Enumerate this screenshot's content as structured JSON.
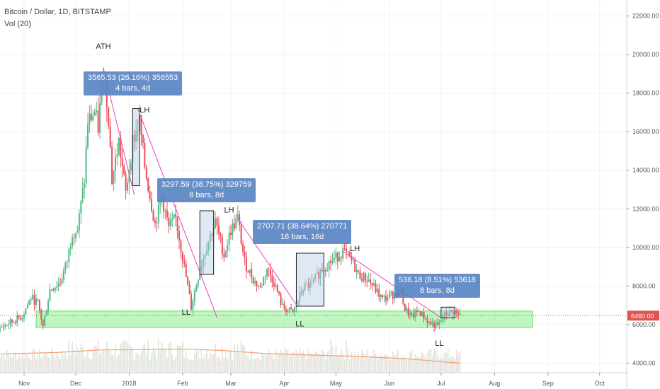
{
  "legend": {
    "symbol_line": "Bitcoin / Dollar, 1D, BITSTAMP",
    "volume_line": "Vol (20)"
  },
  "colors": {
    "up": "#53b987",
    "down": "#eb4d5c",
    "trend_line": "#e840c8",
    "support_zone": "#8cf08c",
    "measure_box": "#5b86c4",
    "price_tag": "#e0534e",
    "volume_ma": "#f0a070"
  },
  "chart_data": {
    "type": "candlestick",
    "y_axis": {
      "range": [
        3500,
        22500
      ],
      "ticks": [
        4000,
        6000,
        8000,
        10000,
        12000,
        14000,
        16000,
        18000,
        20000,
        22000
      ],
      "tick_labels": [
        "4000.00",
        "6000.00",
        "8000.00",
        "10000.00",
        "12000.00",
        "14000.00",
        "16000.00",
        "18000.00",
        "20000.00",
        "22000.00"
      ]
    },
    "x_axis": {
      "labels": [
        "Nov",
        "Dec",
        "2018",
        "Feb",
        "Mar",
        "Apr",
        "May",
        "Jun",
        "Jul",
        "Aug",
        "Sep",
        "Oct"
      ],
      "dates": [
        "2017-11-01",
        "2017-12-01",
        "2018-01-01",
        "2018-02-01",
        "2018-03-01",
        "2018-04-01",
        "2018-05-01",
        "2018-06-01",
        "2018-07-01",
        "2018-08-01",
        "2018-09-01",
        "2018-10-01"
      ]
    },
    "price_path": [
      [
        "2017-10-15",
        5700
      ],
      [
        "2017-10-22",
        6000
      ],
      [
        "2017-10-31",
        6450
      ],
      [
        "2017-11-05",
        7400
      ],
      [
        "2017-11-09",
        7100
      ],
      [
        "2017-11-12",
        5900
      ],
      [
        "2017-11-16",
        7800
      ],
      [
        "2017-11-22",
        8200
      ],
      [
        "2017-11-26",
        9300
      ],
      [
        "2017-11-29",
        10800
      ],
      [
        "2017-12-02",
        10900
      ],
      [
        "2017-12-06",
        13500
      ],
      [
        "2017-12-08",
        16500
      ],
      [
        "2017-12-12",
        17000
      ],
      [
        "2017-12-14",
        16200
      ],
      [
        "2017-12-17",
        19300
      ],
      [
        "2017-12-20",
        16800
      ],
      [
        "2017-12-22",
        13500
      ],
      [
        "2017-12-26",
        15500
      ],
      [
        "2017-12-30",
        12800
      ],
      [
        "2018-01-03",
        15500
      ],
      [
        "2018-01-07",
        16500
      ],
      [
        "2018-01-10",
        14200
      ],
      [
        "2018-01-16",
        11200
      ],
      [
        "2018-01-20",
        12600
      ],
      [
        "2018-01-24",
        11000
      ],
      [
        "2018-01-28",
        11500
      ],
      [
        "2018-02-01",
        9500
      ],
      [
        "2018-02-06",
        6900
      ],
      [
        "2018-02-10",
        8500
      ],
      [
        "2018-02-15",
        10100
      ],
      [
        "2018-02-20",
        11300
      ],
      [
        "2018-02-25",
        9600
      ],
      [
        "2018-03-01",
        10900
      ],
      [
        "2018-03-05",
        11500
      ],
      [
        "2018-03-09",
        9200
      ],
      [
        "2018-03-15",
        8200
      ],
      [
        "2018-03-18",
        7900
      ],
      [
        "2018-03-22",
        8900
      ],
      [
        "2018-03-26",
        8200
      ],
      [
        "2018-03-31",
        6900
      ],
      [
        "2018-04-06",
        6600
      ],
      [
        "2018-04-12",
        7900
      ],
      [
        "2018-04-17",
        8100
      ],
      [
        "2018-04-23",
        8900
      ],
      [
        "2018-04-30",
        9400
      ],
      [
        "2018-05-05",
        9800
      ],
      [
        "2018-05-10",
        9300
      ],
      [
        "2018-05-14",
        8600
      ],
      [
        "2018-05-20",
        8300
      ],
      [
        "2018-05-28",
        7300
      ],
      [
        "2018-06-04",
        7600
      ],
      [
        "2018-06-08",
        7650
      ],
      [
        "2018-06-10",
        6800
      ],
      [
        "2018-06-14",
        6400
      ],
      [
        "2018-06-18",
        6700
      ],
      [
        "2018-06-24",
        6100
      ],
      [
        "2018-06-29",
        5900
      ],
      [
        "2018-07-03",
        6500
      ],
      [
        "2018-07-08",
        6700
      ],
      [
        "2018-07-12",
        6450
      ]
    ],
    "volume_ma_path": [
      [
        "2017-10-15",
        4470
      ],
      [
        "2017-11-20",
        4550
      ],
      [
        "2017-12-15",
        4680
      ],
      [
        "2018-01-10",
        4700
      ],
      [
        "2018-02-05",
        4720
      ],
      [
        "2018-02-25",
        4650
      ],
      [
        "2018-03-20",
        4500
      ],
      [
        "2018-04-15",
        4420
      ],
      [
        "2018-05-10",
        4360
      ],
      [
        "2018-06-10",
        4230
      ],
      [
        "2018-07-12",
        4000
      ]
    ],
    "support_zone": {
      "from": "2017-11-08",
      "to": "2018-08-23",
      "low": 5850,
      "high": 6700
    },
    "trend_lines": [
      {
        "from": [
          "2017-12-17",
          19300
        ],
        "to": [
          "2018-01-04",
          12700
        ]
      },
      {
        "from": [
          "2018-01-06",
          17200
        ],
        "to": [
          "2018-02-21",
          6350
        ]
      },
      {
        "from": [
          "2018-03-05",
          11500
        ],
        "to": [
          "2018-04-09",
          6900
        ]
      },
      {
        "from": [
          "2018-05-05",
          9800
        ],
        "to": [
          "2018-07-01",
          6350
        ]
      }
    ],
    "measure_boxes": [
      {
        "from": "2018-01-03",
        "to": "2018-01-07",
        "low": 13200,
        "high": 17200
      },
      {
        "from": "2018-02-11",
        "to": "2018-02-19",
        "low": 8600,
        "high": 11900
      },
      {
        "from": "2018-04-08",
        "to": "2018-04-24",
        "low": 6950,
        "high": 9700
      },
      {
        "from": "2018-07-01",
        "to": "2018-07-09",
        "low": 6350,
        "high": 6900
      }
    ],
    "annotations": [
      {
        "text": "ATH",
        "date": "2017-12-17",
        "price": 20300
      },
      {
        "text": "LH",
        "date": "2018-01-10",
        "price": 17000
      },
      {
        "text": "LH",
        "date": "2018-02-28",
        "price": 11800
      },
      {
        "text": "LH",
        "date": "2018-05-12",
        "price": 9800
      },
      {
        "text": "LL",
        "date": "2018-02-03",
        "price": 6500
      },
      {
        "text": "LL",
        "date": "2018-04-10",
        "price": 5900
      },
      {
        "text": "LL",
        "date": "2018-06-30",
        "price": 4900
      }
    ],
    "measure_labels": [
      {
        "line1": "3565.53 (26.16%) 356553",
        "line2": "4 bars, 4d"
      },
      {
        "line1": "3297.59 (38.75%) 329759",
        "line2": "8 bars, 8d"
      },
      {
        "line1": "2707.71 (38.64%) 270771",
        "line2": "16 bars, 16d"
      },
      {
        "line1": "536.18 (8.51%) 53618",
        "line2": "8 bars, 8d"
      }
    ],
    "last_price": {
      "value": 6460,
      "label": "6460.00"
    }
  }
}
